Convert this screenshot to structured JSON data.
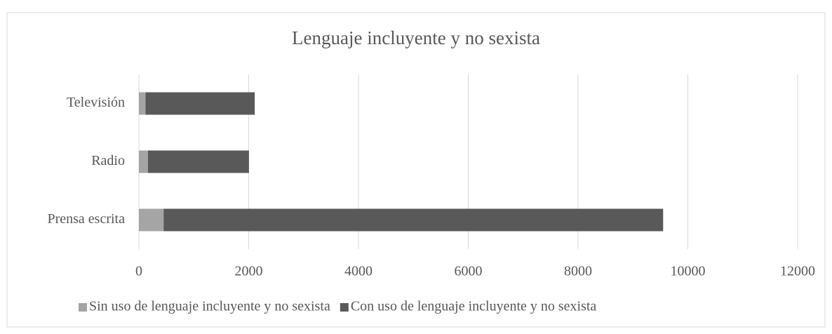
{
  "chart_data": {
    "type": "stacked-barh",
    "title": "Lenguaje incluyente y no sexista",
    "categories": [
      "Prensa escrita",
      "Radio",
      "Televisión"
    ],
    "series": [
      {
        "name": "Sin uso de lenguaje incluyente y no sexista",
        "color": "#a5a5a5",
        "values": [
          450,
          165,
          120
        ]
      },
      {
        "name": "Con uso de lenguaje incluyente y no sexista",
        "color": "#595959",
        "values": [
          9100,
          1840,
          1990
        ]
      }
    ],
    "xlim": [
      0,
      12000
    ],
    "xticks": [
      0,
      2000,
      4000,
      6000,
      8000,
      10000,
      12000
    ],
    "grid": true,
    "legend": "bottom"
  }
}
